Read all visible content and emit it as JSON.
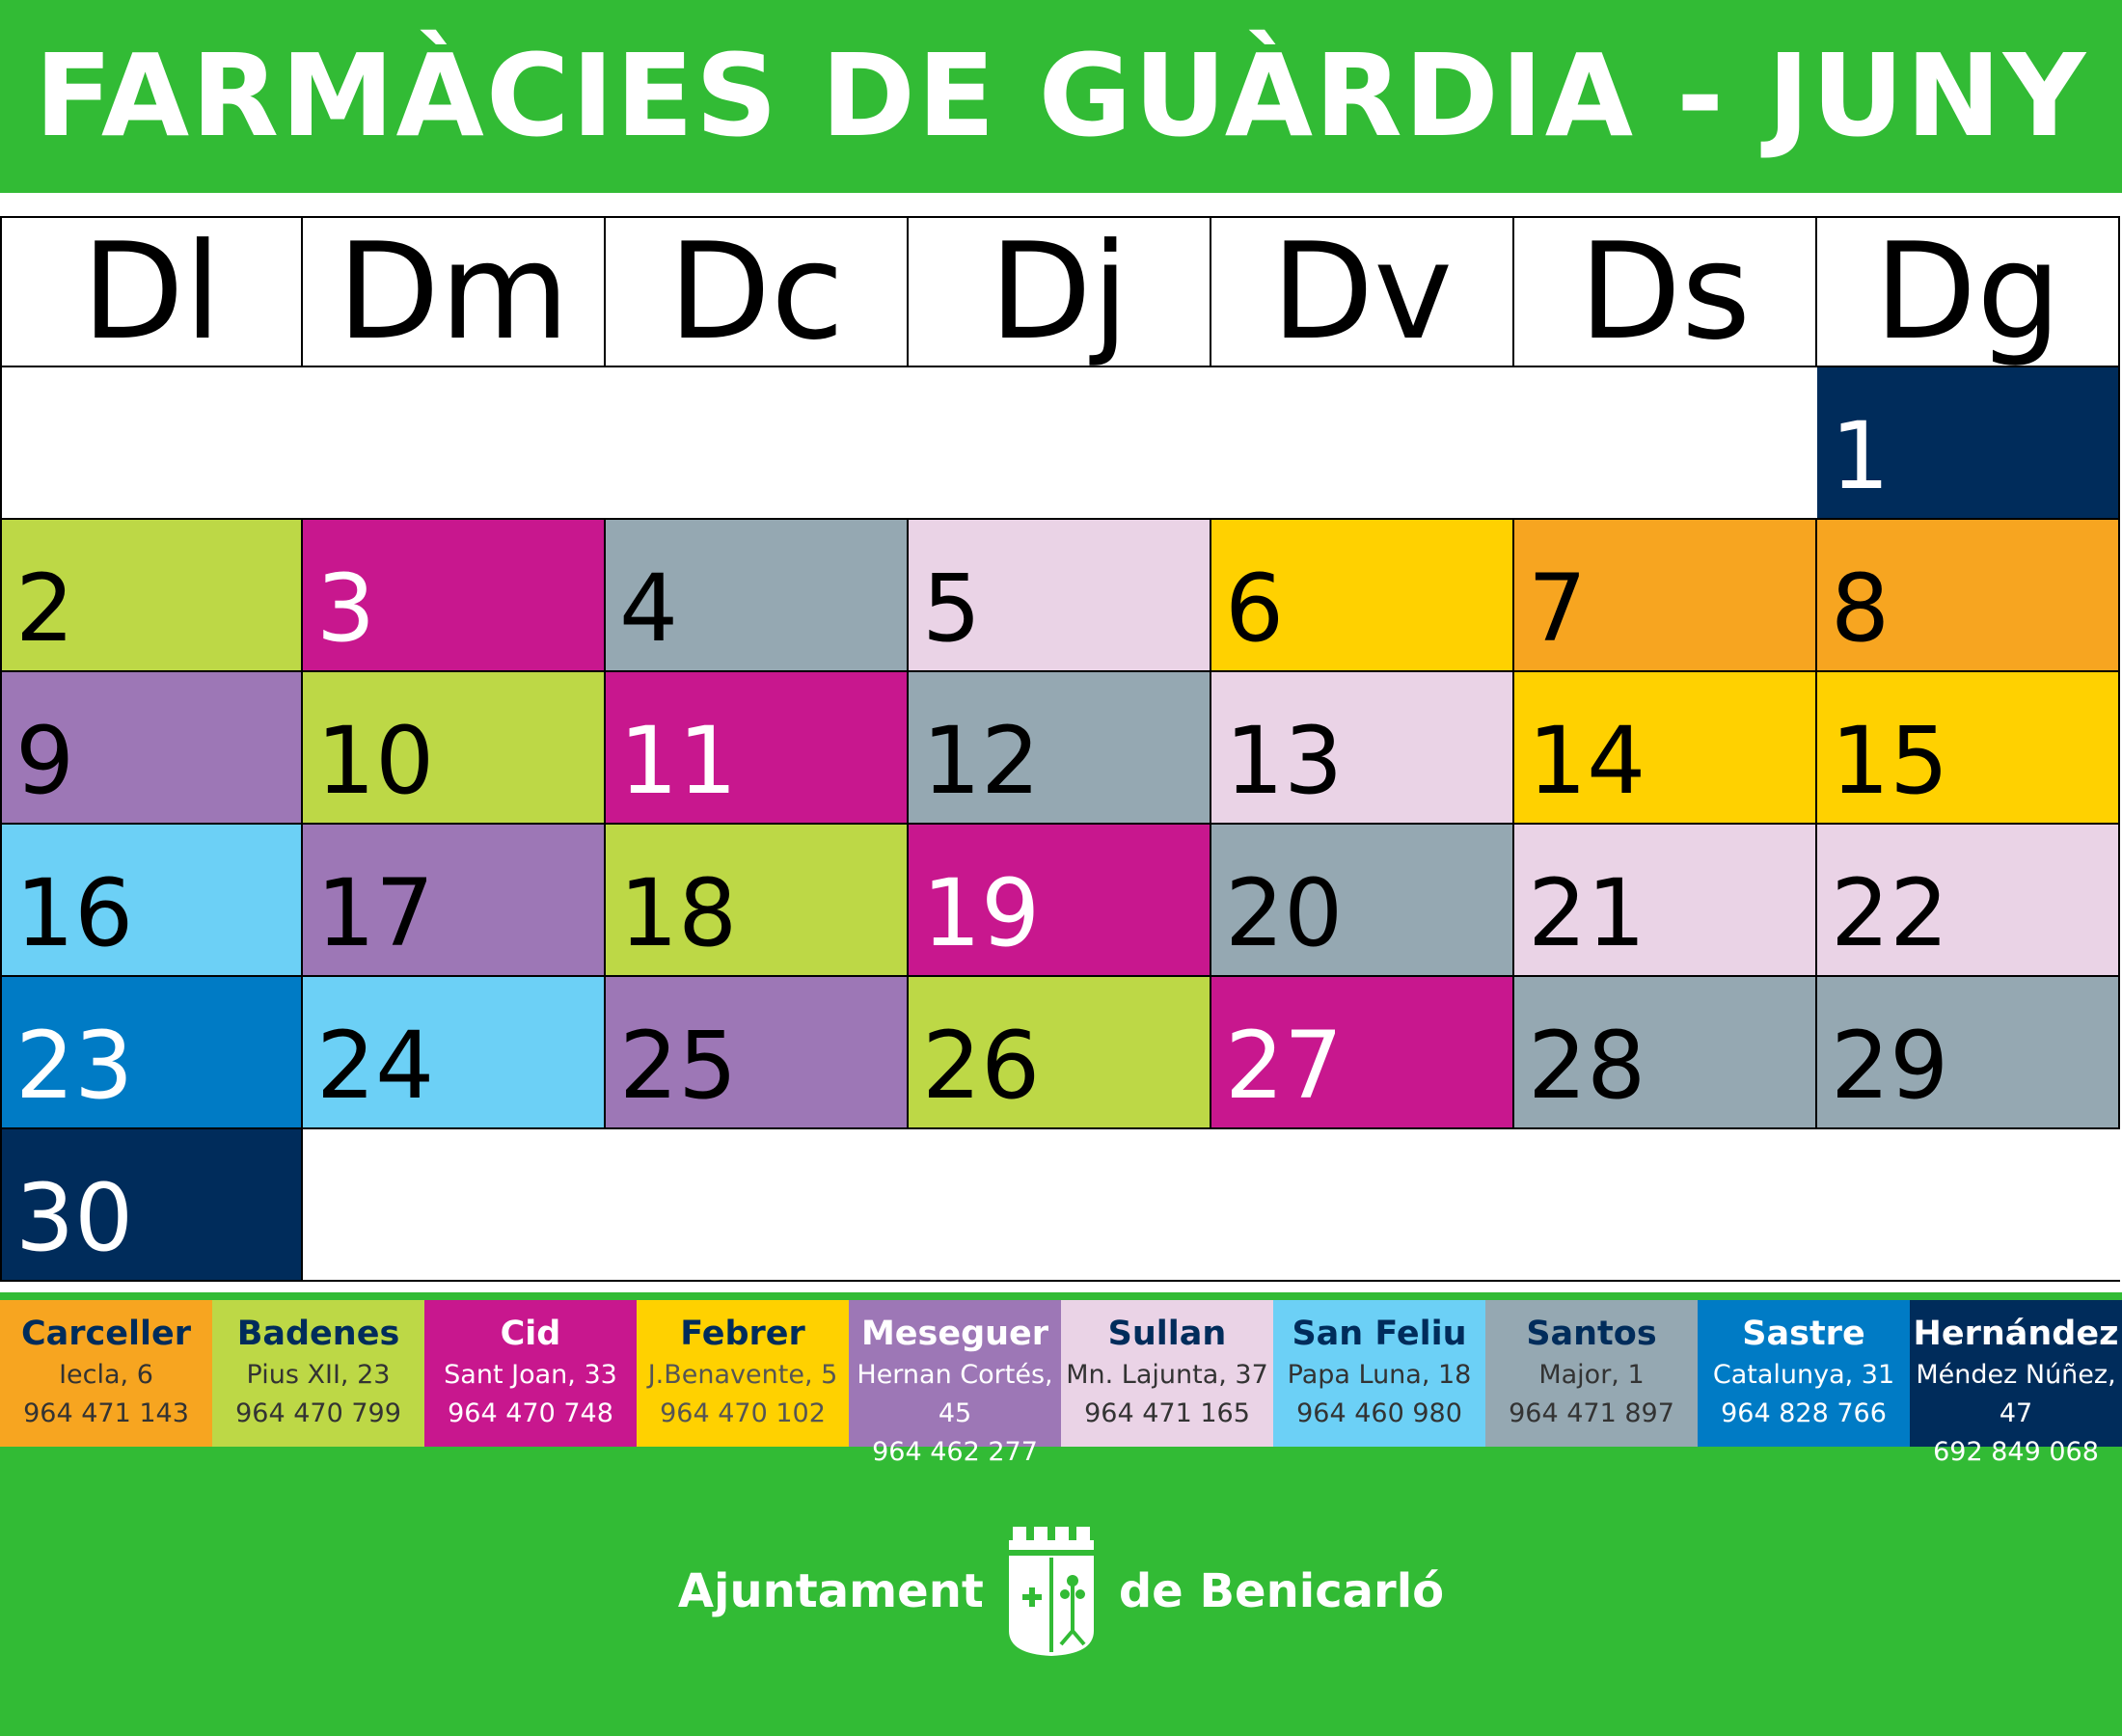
{
  "title": "FARMÀCIES DE GUÀRDIA - JUNY",
  "weekdays": [
    "Dl",
    "Dm",
    "Dc",
    "Dj",
    "Dv",
    "Ds",
    "Dg"
  ],
  "colors": {
    "green_bg": "#32bb35",
    "Carceller": "#f7a520",
    "Badenes": "#bdd846",
    "Cid": "#c8178e",
    "Febrer": "#ffd100",
    "Meseguer": "#9d77b6",
    "Sullan": "#ead3e6",
    "San Feliu": "#6cd0f6",
    "Santos": "#95a8b2",
    "Sastre": "#007bc5",
    "Hernández": "#002c5b"
  },
  "days": [
    {
      "day": "1",
      "pharmacy": "Hernández"
    },
    {
      "day": "2",
      "pharmacy": "Badenes"
    },
    {
      "day": "3",
      "pharmacy": "Cid"
    },
    {
      "day": "4",
      "pharmacy": "Santos"
    },
    {
      "day": "5",
      "pharmacy": "Sullan"
    },
    {
      "day": "6",
      "pharmacy": "Febrer"
    },
    {
      "day": "7",
      "pharmacy": "Carceller"
    },
    {
      "day": "8",
      "pharmacy": "Carceller"
    },
    {
      "day": "9",
      "pharmacy": "Meseguer"
    },
    {
      "day": "10",
      "pharmacy": "Badenes"
    },
    {
      "day": "11",
      "pharmacy": "Cid"
    },
    {
      "day": "12",
      "pharmacy": "Santos"
    },
    {
      "day": "13",
      "pharmacy": "Sullan"
    },
    {
      "day": "14",
      "pharmacy": "Febrer"
    },
    {
      "day": "15",
      "pharmacy": "Febrer"
    },
    {
      "day": "16",
      "pharmacy": "San Feliu"
    },
    {
      "day": "17",
      "pharmacy": "Meseguer"
    },
    {
      "day": "18",
      "pharmacy": "Badenes"
    },
    {
      "day": "19",
      "pharmacy": "Cid"
    },
    {
      "day": "20",
      "pharmacy": "Santos"
    },
    {
      "day": "21",
      "pharmacy": "Sullan"
    },
    {
      "day": "22",
      "pharmacy": "Sullan"
    },
    {
      "day": "23",
      "pharmacy": "Sastre"
    },
    {
      "day": "24",
      "pharmacy": "San Feliu"
    },
    {
      "day": "25",
      "pharmacy": "Meseguer"
    },
    {
      "day": "26",
      "pharmacy": "Badenes"
    },
    {
      "day": "27",
      "pharmacy": "Cid"
    },
    {
      "day": "28",
      "pharmacy": "Santos"
    },
    {
      "day": "29",
      "pharmacy": "Santos"
    },
    {
      "day": "30",
      "pharmacy": "Hernández"
    }
  ],
  "pharmacies": [
    {
      "name": "Carceller",
      "address": "Iecla, 6",
      "phone": "964 471 143"
    },
    {
      "name": "Badenes",
      "address": "Pius XII, 23",
      "phone": "964 470 799"
    },
    {
      "name": "Cid",
      "address": "Sant Joan, 33",
      "phone": "964 470 748"
    },
    {
      "name": "Febrer",
      "address": "J.Benavente, 5",
      "phone": "964 470 102"
    },
    {
      "name": "Meseguer",
      "address": "Hernan Cortés, 45",
      "phone": "964 462 277"
    },
    {
      "name": "Sullan",
      "address": "Mn. Lajunta, 37",
      "phone": "964 471 165"
    },
    {
      "name": "San Feliu",
      "address": "Papa Luna, 18",
      "phone": "964 460 980"
    },
    {
      "name": "Santos",
      "address": "Major, 1",
      "phone": "964 471 897"
    },
    {
      "name": "Sastre",
      "address": "Catalunya, 31",
      "phone": "964 828 766"
    },
    {
      "name": "Hernández",
      "address": "Méndez Núñez, 47",
      "phone": "692 849 068"
    }
  ],
  "footer": {
    "left_word": "Ajuntament",
    "right_word": "de Benicarló",
    "emblem": "benicarlo-coat-of-arms-icon"
  }
}
